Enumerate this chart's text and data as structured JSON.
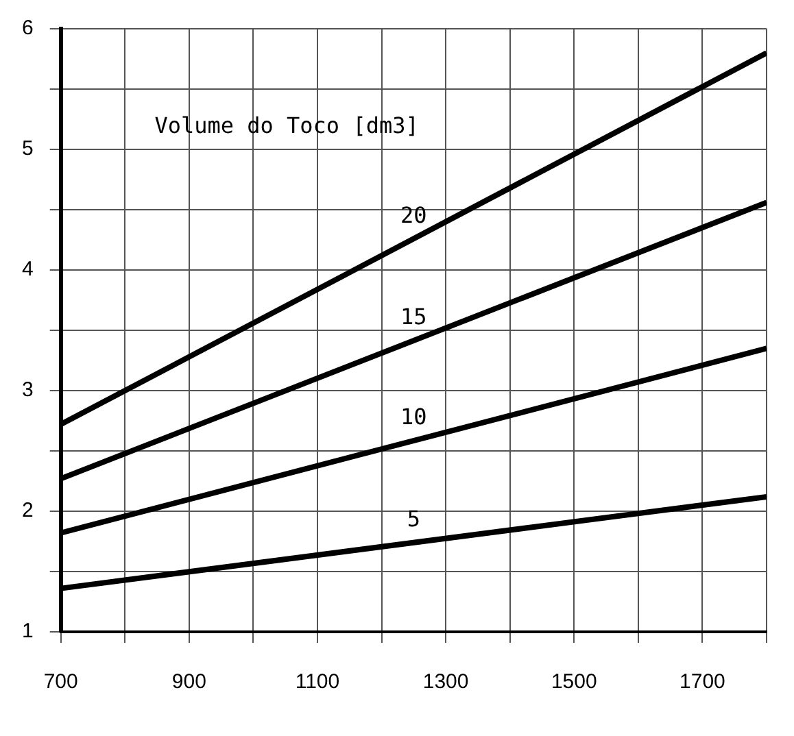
{
  "chart_data": {
    "type": "line",
    "legend_title": "Volume do Toco [dm3]",
    "x": [
      700,
      1800
    ],
    "xlim": [
      700,
      1800
    ],
    "xticks": [
      700,
      {
        "value": 800,
        "label": null
      },
      900,
      {
        "value": 1000,
        "label": null
      },
      1100,
      {
        "value": 1200,
        "label": null
      },
      1300,
      {
        "value": 1400,
        "label": null
      },
      1500,
      {
        "value": 1600,
        "label": null
      },
      1700,
      {
        "value": 1800,
        "label": null
      }
    ],
    "ylim": [
      1,
      6
    ],
    "yticks": [
      1,
      {
        "value": 1.5,
        "label": null
      },
      2,
      {
        "value": 2.5,
        "label": null
      },
      3,
      {
        "value": 3.5,
        "label": null
      },
      4,
      {
        "value": 4.5,
        "label": null
      },
      5,
      {
        "value": 5.5,
        "label": null
      },
      6
    ],
    "grid": true,
    "marker": "none",
    "line_style": "solid",
    "legend": false,
    "series": [
      {
        "name": "20",
        "color": "#000000",
        "values": [
          2.72,
          5.8
        ]
      },
      {
        "name": "15",
        "color": "#000000",
        "values": [
          2.27,
          4.56
        ]
      },
      {
        "name": "10",
        "color": "#000000",
        "values": [
          1.82,
          3.35
        ]
      },
      {
        "name": "5",
        "color": "#000000",
        "values": [
          1.36,
          2.12
        ]
      }
    ]
  }
}
